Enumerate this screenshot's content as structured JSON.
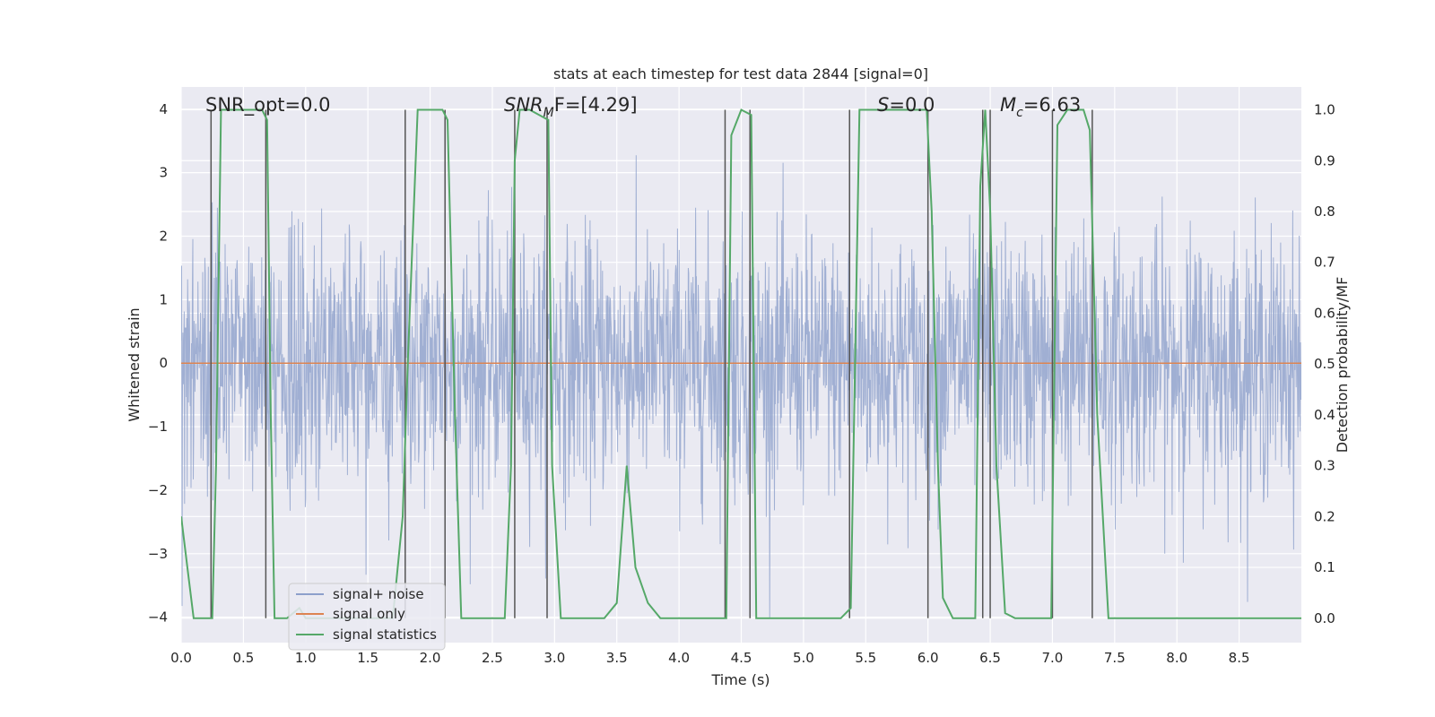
{
  "chart_data": {
    "type": "line",
    "title": "stats at each timestep for test data 2844 [signal=0]",
    "xlabel": "Time (s)",
    "ylabel": "Whitened strain",
    "y2label": "Detection probability/MF",
    "xlim": [
      0,
      9
    ],
    "ylim": [
      -4.4,
      4.35
    ],
    "y2lim": [
      -0.048,
      1.045
    ],
    "grid": true,
    "x_ticks": [
      "0.0",
      "0.5",
      "1.0",
      "1.5",
      "2.0",
      "2.5",
      "3.0",
      "3.5",
      "4.0",
      "4.5",
      "5.0",
      "5.5",
      "6.0",
      "6.5",
      "7.0",
      "7.5",
      "8.0",
      "8.5"
    ],
    "y_ticks": [
      "4",
      "3",
      "2",
      "1",
      "0",
      "−1",
      "−2",
      "−3",
      "−4"
    ],
    "y2_ticks": [
      "1.0",
      "0.9",
      "0.8",
      "0.7",
      "0.6",
      "0.5",
      "0.4",
      "0.3",
      "0.2",
      "0.1",
      "0.0"
    ],
    "annotations": [
      {
        "id": "snr-opt",
        "prefix": "SNR_opt=0.0",
        "base": "",
        "sub": "",
        "suffix": ""
      },
      {
        "id": "snr-mf",
        "prefix": "",
        "base": "SNR",
        "sub": "M",
        "suffix": "F=[4.29]"
      },
      {
        "id": "s-val",
        "prefix": "",
        "base": "S",
        "sub": "",
        "suffix": "=0.0"
      },
      {
        "id": "mc-val",
        "prefix": "",
        "base": "M",
        "sub": "c",
        "suffix": "=6.63"
      }
    ],
    "legend": {
      "position": "lower-left",
      "entries": [
        {
          "label": "signal+ noise",
          "color": "#8da0cb"
        },
        {
          "label": "signal only",
          "color": "#dd8452"
        },
        {
          "label": "signal statistics",
          "color": "#55a868"
        }
      ]
    },
    "series": [
      {
        "name": "signal+ noise",
        "color": "#8da0cb",
        "alpha": 0.8,
        "kind": "noise",
        "x_range": [
          0,
          9
        ],
        "approx_std": 1.0,
        "clip": [
          -4,
          3.7
        ]
      },
      {
        "name": "signal only",
        "color": "#dd8452",
        "x": [
          0,
          9
        ],
        "y": [
          0,
          0
        ]
      },
      {
        "name": "signal statistics",
        "color": "#55a868",
        "axis": "right",
        "x": [
          0.0,
          0.05,
          0.1,
          0.2,
          0.25,
          0.28,
          0.32,
          0.45,
          0.55,
          0.65,
          0.69,
          0.72,
          0.75,
          0.85,
          0.95,
          1.0,
          1.5,
          1.7,
          1.78,
          1.82,
          1.9,
          2.0,
          2.1,
          2.14,
          2.2,
          2.25,
          2.4,
          2.6,
          2.65,
          2.68,
          2.72,
          2.8,
          2.95,
          2.98,
          3.05,
          3.4,
          3.5,
          3.58,
          3.65,
          3.75,
          3.85,
          4.0,
          4.2,
          4.38,
          4.42,
          4.5,
          4.58,
          4.62,
          4.7,
          5.0,
          5.3,
          5.38,
          5.45,
          5.6,
          5.99,
          6.03,
          6.08,
          6.12,
          6.2,
          6.38,
          6.42,
          6.46,
          6.5,
          6.55,
          6.62,
          6.7,
          6.99,
          7.04,
          7.12,
          7.25,
          7.3,
          7.36,
          7.45,
          9.0
        ],
        "y": [
          0.2,
          0.1,
          0.0,
          0.0,
          0.0,
          0.3,
          1.0,
          1.0,
          1.0,
          1.0,
          0.98,
          0.4,
          0.0,
          0.0,
          0.02,
          0.0,
          0.0,
          0.0,
          0.2,
          0.5,
          1.0,
          1.0,
          1.0,
          0.98,
          0.4,
          0.0,
          0.0,
          0.0,
          0.3,
          0.9,
          1.0,
          1.0,
          0.98,
          0.3,
          0.0,
          0.0,
          0.03,
          0.3,
          0.1,
          0.03,
          0.0,
          0.0,
          0.0,
          0.0,
          0.95,
          1.0,
          0.99,
          0.0,
          0.0,
          0.0,
          0.0,
          0.02,
          1.0,
          1.0,
          1.0,
          0.8,
          0.3,
          0.04,
          0.0,
          0.0,
          0.85,
          1.0,
          0.8,
          0.3,
          0.01,
          0.0,
          0.0,
          0.97,
          1.0,
          1.0,
          0.96,
          0.4,
          0.0,
          0.0
        ]
      }
    ],
    "vlines_x": [
      0.24,
      0.68,
      1.8,
      2.12,
      2.68,
      2.94,
      4.37,
      4.57,
      5.37,
      6.0,
      6.44,
      6.5,
      7.0,
      7.32
    ]
  }
}
